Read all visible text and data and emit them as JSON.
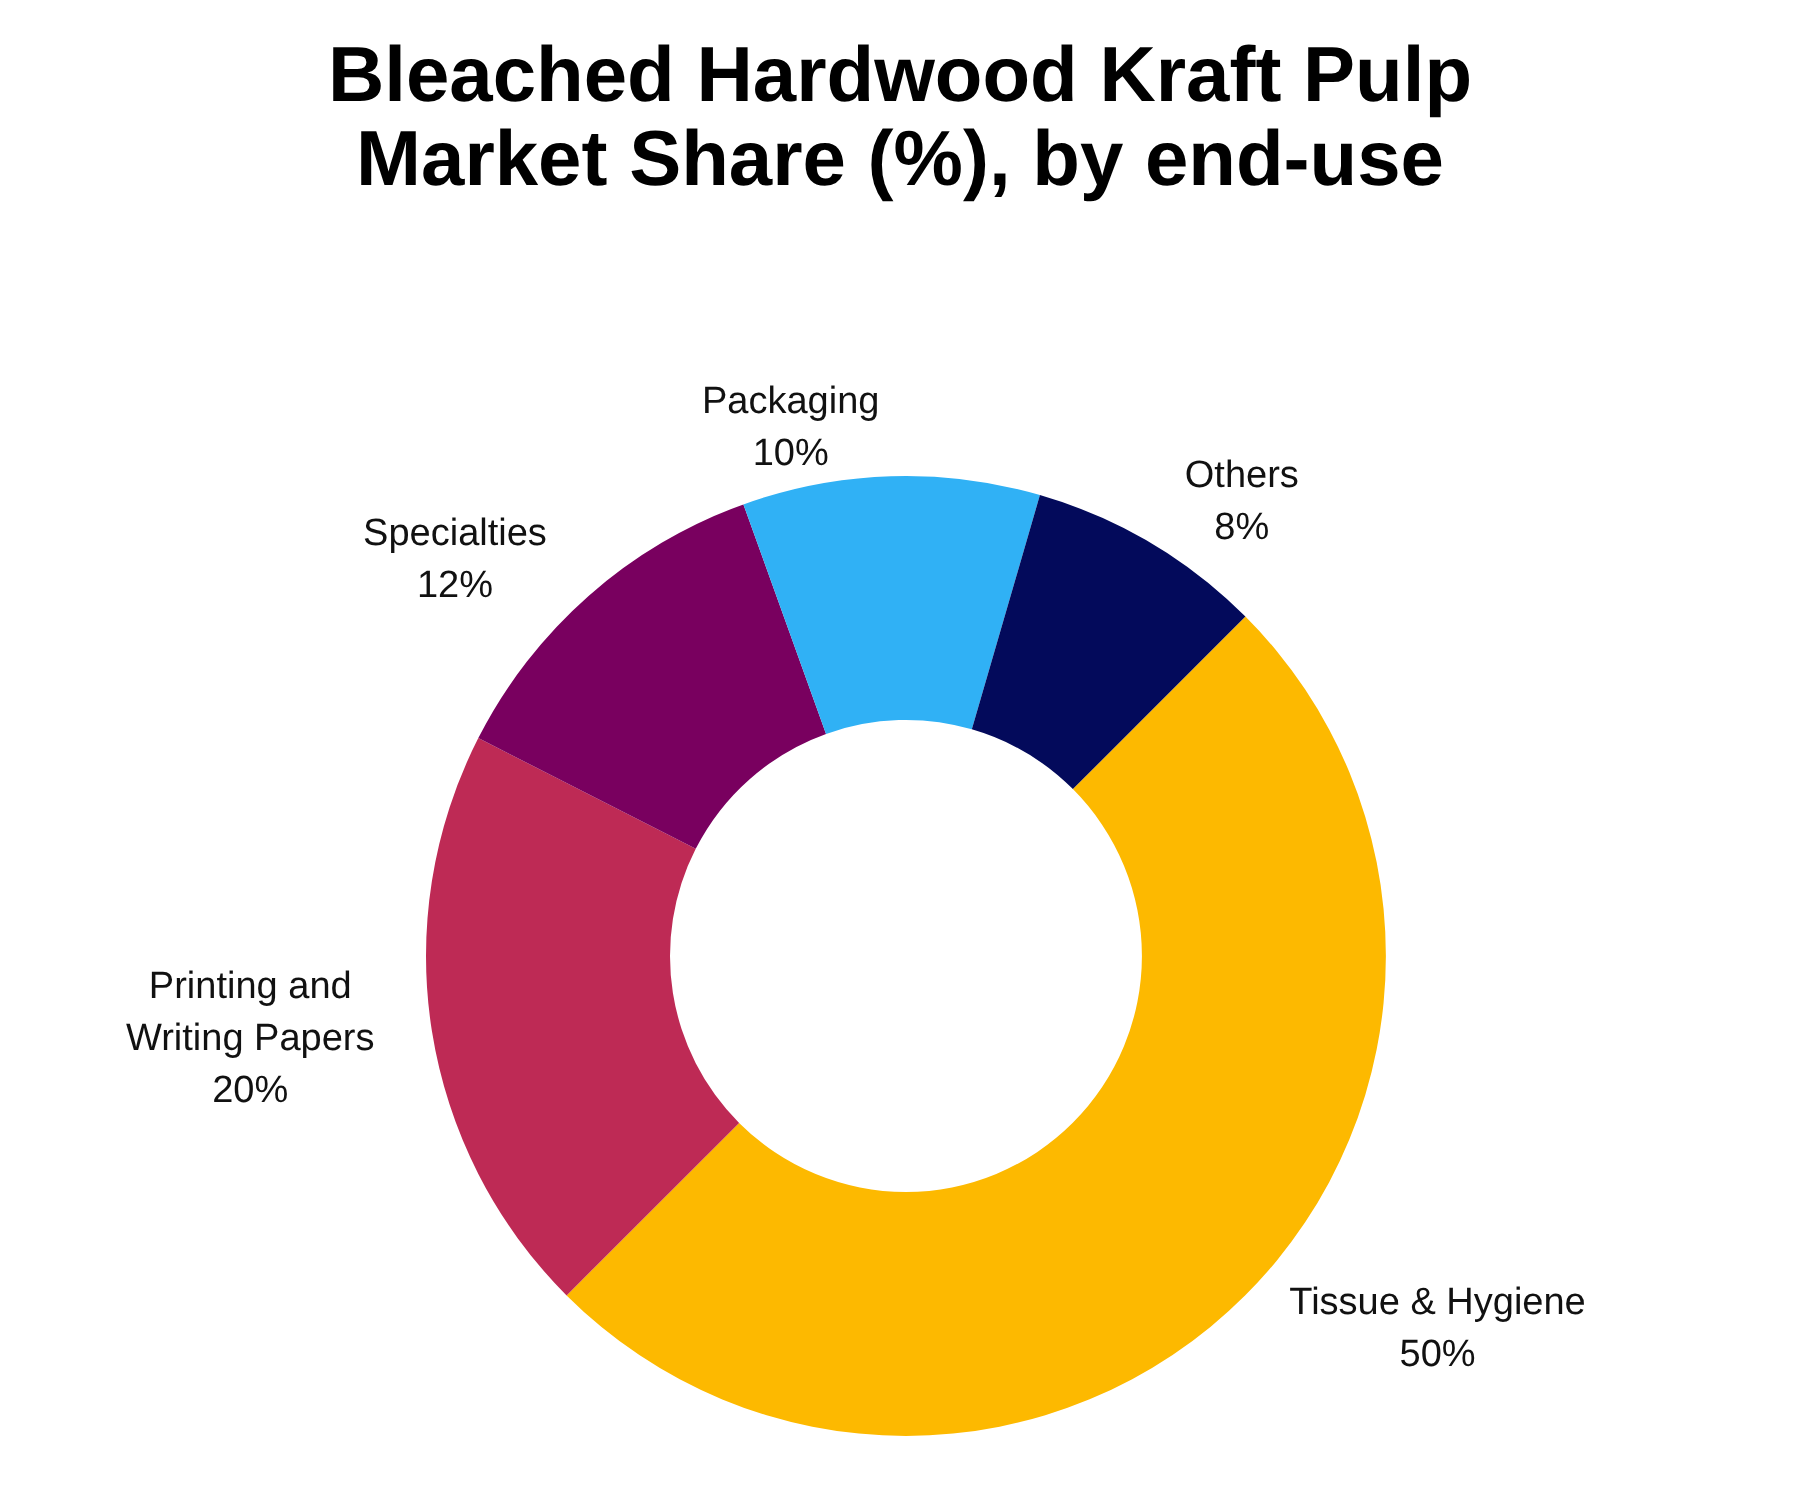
{
  "chart_data": {
    "type": "donut",
    "title": "Bleached Hardwood Kraft Pulp Market Share (%), by end-use",
    "categories": [
      "Tissue & Hygiene",
      "Printing and Writing Papers",
      "Specialties",
      "Packaging",
      "Others"
    ],
    "values": [
      50,
      20,
      12,
      10,
      8
    ],
    "colors": [
      "#fdb900",
      "#be2a55",
      "#79005f",
      "#30b1f5",
      "#030a5b"
    ],
    "value_labels": [
      "50%",
      "20%",
      "12%",
      "10%",
      "8%"
    ]
  }
}
